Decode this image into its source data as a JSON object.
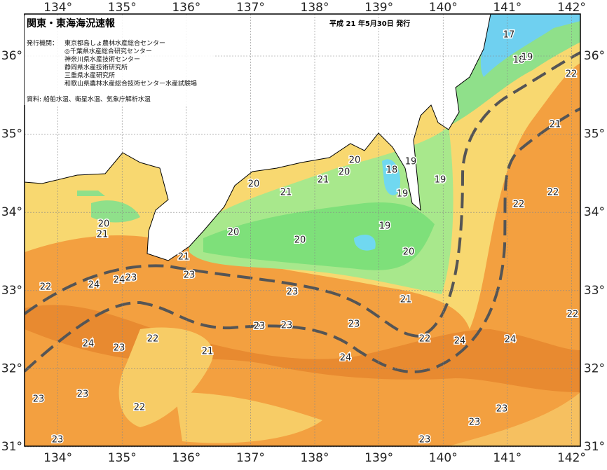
{
  "header": {
    "title": "関東・東海海況速報",
    "date": "平成 21 年5月30日 発行",
    "agency_heading": "発行機関：",
    "agencies": [
      "東京都島しょ農林水産総合センター",
      "◎千葉県水産総合研究センター",
      "神奈川県水産技術センター",
      "静岡県水産技術研究所",
      "三重県水産研究所",
      "和歌山県農林水産総合技術センター水産試験場"
    ],
    "source": "資料: 船舶水温、衛星水温、気象庁解析水温"
  },
  "map": {
    "lon_ticks": [
      {
        "value": 134,
        "label": "134°"
      },
      {
        "value": 135,
        "label": "135°"
      },
      {
        "value": 136,
        "label": "136°"
      },
      {
        "value": 137,
        "label": "137°"
      },
      {
        "value": 138,
        "label": "138°"
      },
      {
        "value": 139,
        "label": "139°"
      },
      {
        "value": 140,
        "label": "140°"
      },
      {
        "value": 141,
        "label": "141°"
      },
      {
        "value": 142,
        "label": "142°"
      }
    ],
    "lat_ticks": [
      {
        "value": 36,
        "label": "36°"
      },
      {
        "value": 35,
        "label": "35°"
      },
      {
        "value": 34,
        "label": "34°"
      },
      {
        "value": 33,
        "label": "33°"
      },
      {
        "value": 32,
        "label": "32°"
      },
      {
        "value": 31,
        "label": "31°"
      }
    ],
    "isotherm_labels": [
      17,
      18,
      19,
      22,
      21,
      22,
      22,
      20,
      20,
      21,
      20,
      21,
      18,
      19,
      19,
      19,
      19,
      20,
      20,
      20,
      20,
      21,
      21,
      23,
      22,
      24,
      24,
      23,
      23,
      21,
      22,
      23,
      23,
      23,
      22,
      24,
      24,
      24,
      22,
      23,
      21,
      24,
      23,
      23,
      22,
      23,
      23,
      23,
      23
    ]
  }
}
